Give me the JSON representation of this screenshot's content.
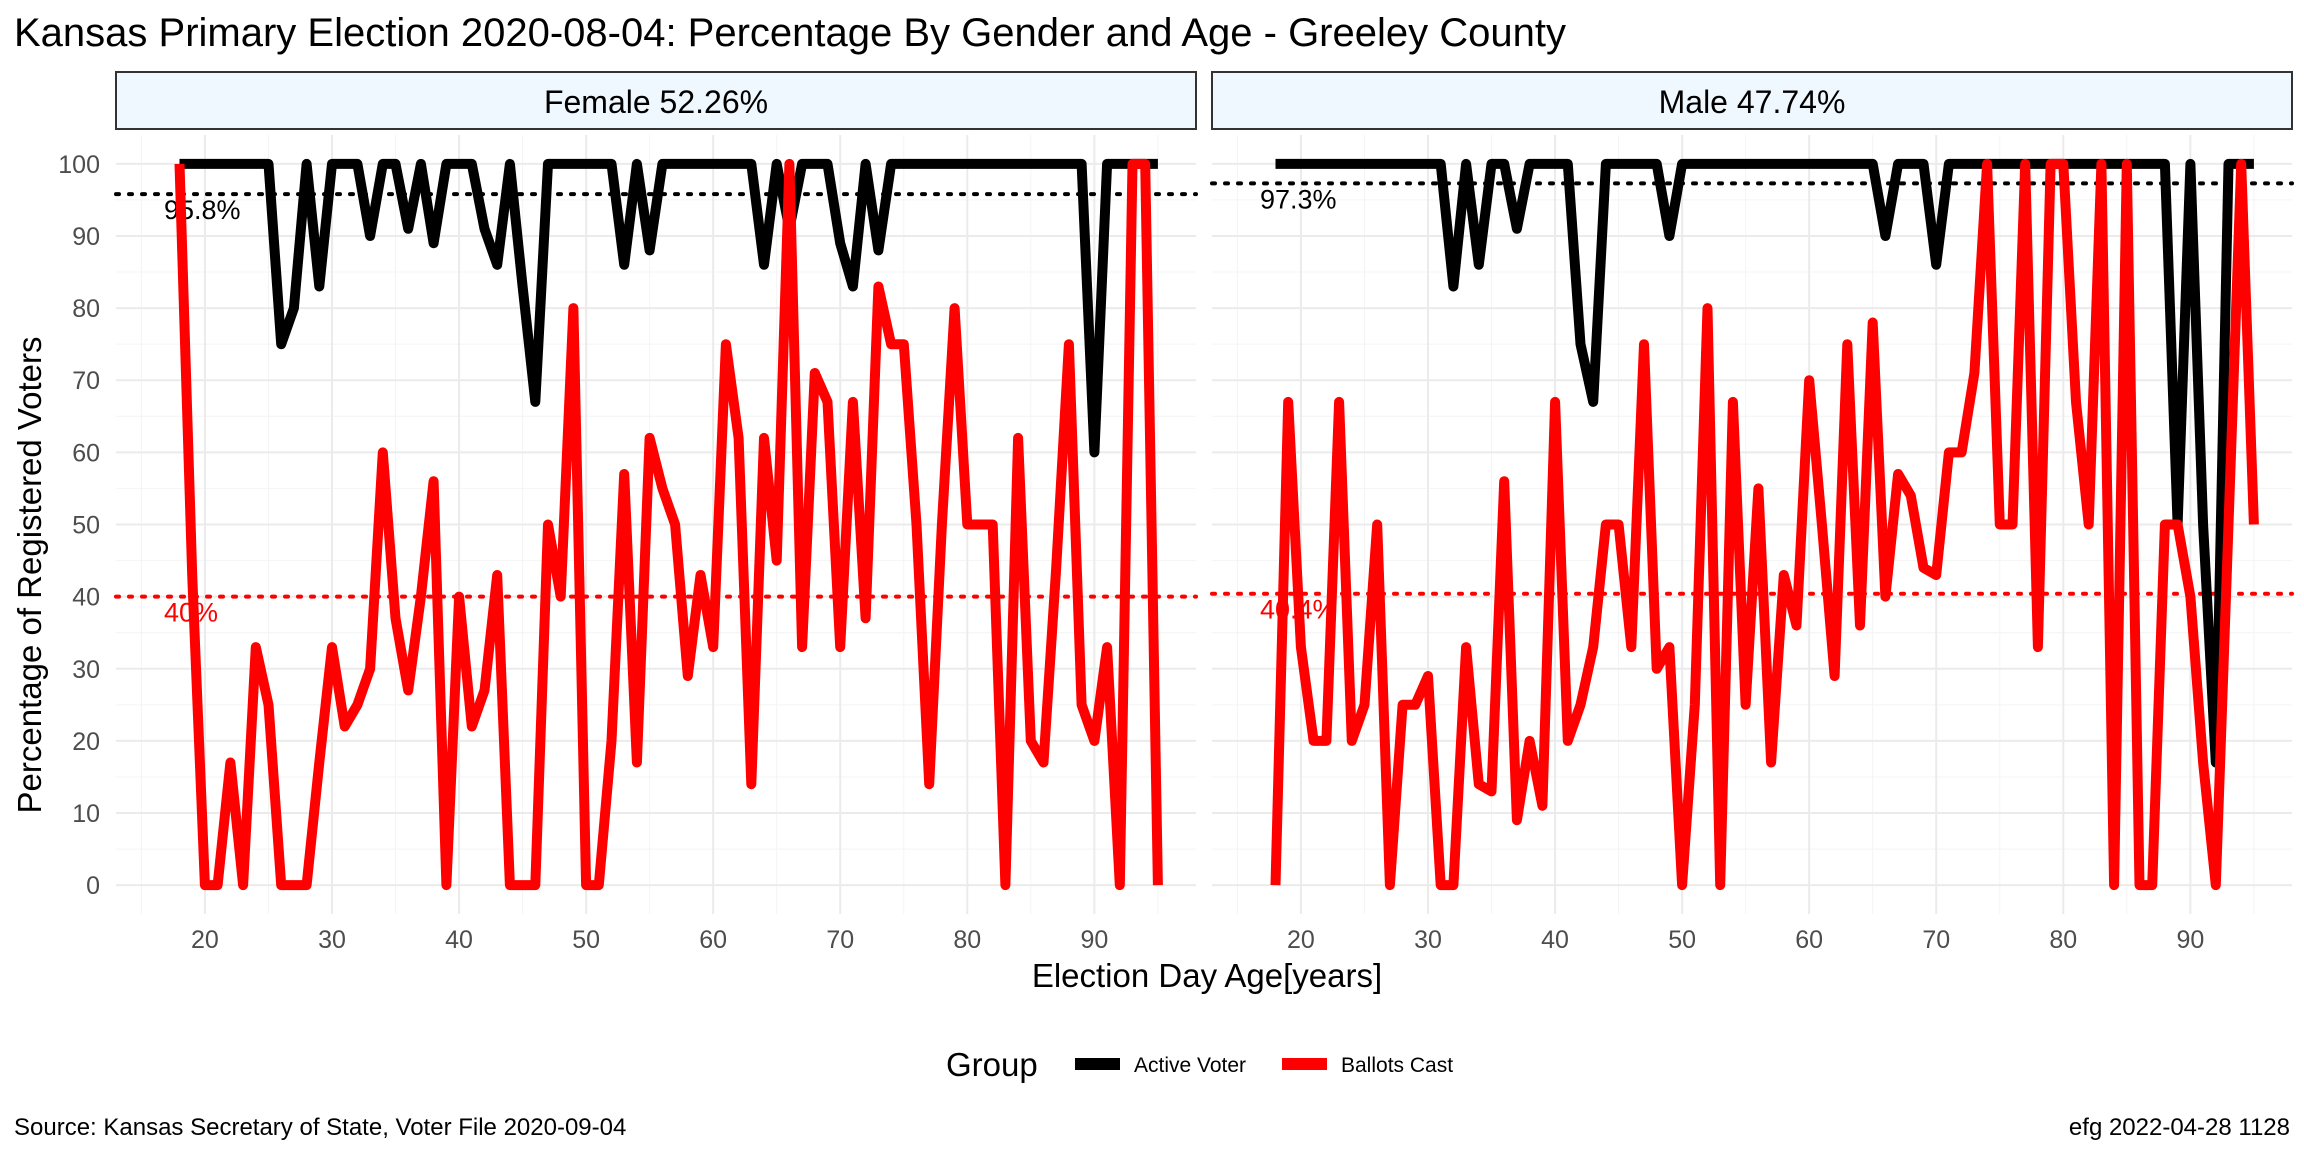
{
  "chart_data": {
    "type": "line",
    "title": "Kansas Primary Election 2020-08-04:  Percentage By Gender and Age - Greeley County",
    "xlabel": "Election Day Age[years]",
    "ylabel": "Percentage of Registered Voters",
    "xlim": [
      13,
      98
    ],
    "ylim": [
      -4,
      104
    ],
    "xticks": [
      20,
      30,
      40,
      50,
      60,
      70,
      80,
      90
    ],
    "yticks": [
      0,
      10,
      20,
      30,
      40,
      50,
      60,
      70,
      80,
      90,
      100
    ],
    "grid": true,
    "legend": {
      "title": "Group",
      "position": "bottom",
      "entries": [
        {
          "label": "Active Voter",
          "color": "#000000"
        },
        {
          "label": "Ballots Cast",
          "color": "#ff0000"
        }
      ]
    },
    "colors": {
      "active": "#000000",
      "ballots": "#ff0000",
      "strip_fill": "#f0f8ff",
      "grid": "#ebebeb"
    },
    "caption_left": "Source:  Kansas Secretary of State, Voter File  2020-09-04",
    "caption_right": "efg 2022-04-28 1128",
    "panels": [
      {
        "strip": "Female 52.26%",
        "reference_lines": [
          {
            "value": 95.8,
            "label": "95.8%",
            "color": "#000000"
          },
          {
            "value": 40,
            "label": "40%",
            "color": "#ff0000"
          }
        ],
        "series": [
          {
            "name": "Active Voter",
            "x": [
              18,
              19,
              20,
              21,
              22,
              23,
              24,
              25,
              26,
              27,
              28,
              29,
              30,
              31,
              32,
              33,
              34,
              35,
              36,
              37,
              38,
              39,
              40,
              41,
              42,
              43,
              44,
              45,
              46,
              47,
              48,
              49,
              50,
              51,
              52,
              53,
              54,
              55,
              56,
              57,
              58,
              59,
              60,
              61,
              62,
              63,
              64,
              65,
              66,
              67,
              68,
              69,
              70,
              71,
              72,
              73,
              74,
              75,
              76,
              77,
              78,
              79,
              80,
              81,
              82,
              83,
              84,
              85,
              86,
              87,
              88,
              89,
              90,
              91,
              92,
              93,
              94,
              95
            ],
            "values": [
              100,
              100,
              100,
              100,
              100,
              100,
              100,
              100,
              75,
              80,
              100,
              83,
              100,
              100,
              100,
              90,
              100,
              100,
              91,
              100,
              89,
              100,
              100,
              100,
              91,
              86,
              100,
              83,
              67,
              100,
              100,
              100,
              100,
              100,
              100,
              86,
              100,
              88,
              100,
              100,
              100,
              100,
              100,
              100,
              100,
              100,
              86,
              100,
              91,
              100,
              100,
              100,
              89,
              83,
              100,
              88,
              100,
              100,
              100,
              100,
              100,
              100,
              100,
              100,
              100,
              100,
              100,
              100,
              100,
              100,
              100,
              100,
              60,
              100,
              100,
              100,
              100,
              100
            ]
          },
          {
            "name": "Ballots Cast",
            "x": [
              18,
              19,
              20,
              21,
              22,
              23,
              24,
              25,
              26,
              27,
              28,
              29,
              30,
              31,
              32,
              33,
              34,
              35,
              36,
              37,
              38,
              39,
              40,
              41,
              42,
              43,
              44,
              45,
              46,
              47,
              48,
              49,
              50,
              51,
              52,
              53,
              54,
              55,
              56,
              57,
              58,
              59,
              60,
              61,
              62,
              63,
              64,
              65,
              66,
              67,
              68,
              69,
              70,
              71,
              72,
              73,
              74,
              75,
              76,
              77,
              78,
              79,
              80,
              81,
              82,
              83,
              84,
              85,
              86,
              87,
              88,
              89,
              90,
              91,
              92,
              93,
              94,
              95
            ],
            "values": [
              100,
              43,
              0,
              0,
              17,
              0,
              33,
              25,
              0,
              0,
              0,
              17,
              33,
              22,
              25,
              30,
              60,
              37,
              27,
              40,
              56,
              0,
              40,
              22,
              27,
              43,
              0,
              0,
              0,
              50,
              40,
              80,
              0,
              0,
              20,
              57,
              17,
              62,
              55,
              50,
              29,
              43,
              33,
              75,
              62,
              14,
              62,
              45,
              100,
              33,
              71,
              67,
              33,
              67,
              37,
              83,
              75,
              75,
              50,
              14,
              50,
              80,
              50,
              50,
              50,
              0,
              62,
              20,
              17,
              44,
              75,
              25,
              20,
              33,
              0,
              100,
              100,
              0
            ]
          }
        ]
      },
      {
        "strip": "Male 47.74%",
        "reference_lines": [
          {
            "value": 97.3,
            "label": "97.3%",
            "color": "#000000"
          },
          {
            "value": 40.4,
            "label": "40.4%",
            "color": "#ff0000"
          }
        ],
        "series": [
          {
            "name": "Active Voter",
            "x": [
              18,
              19,
              20,
              21,
              22,
              23,
              24,
              25,
              26,
              27,
              28,
              29,
              30,
              31,
              32,
              33,
              34,
              35,
              36,
              37,
              38,
              39,
              40,
              41,
              42,
              43,
              44,
              45,
              46,
              47,
              48,
              49,
              50,
              51,
              52,
              53,
              54,
              55,
              56,
              57,
              58,
              59,
              60,
              61,
              62,
              63,
              64,
              65,
              66,
              67,
              68,
              69,
              70,
              71,
              72,
              73,
              74,
              75,
              76,
              77,
              78,
              79,
              80,
              81,
              82,
              83,
              84,
              85,
              86,
              87,
              88,
              89,
              90,
              91,
              92,
              93,
              94,
              95
            ],
            "values": [
              100,
              100,
              100,
              100,
              100,
              100,
              100,
              100,
              100,
              100,
              100,
              100,
              100,
              100,
              83,
              100,
              86,
              100,
              100,
              91,
              100,
              100,
              100,
              100,
              75,
              67,
              100,
              100,
              100,
              100,
              100,
              90,
              100,
              100,
              100,
              100,
              100,
              100,
              100,
              100,
              100,
              100,
              100,
              100,
              100,
              100,
              100,
              100,
              90,
              100,
              100,
              100,
              86,
              100,
              100,
              100,
              100,
              100,
              100,
              100,
              100,
              100,
              100,
              100,
              100,
              100,
              100,
              100,
              100,
              100,
              100,
              50,
              100,
              50,
              17,
              100,
              100,
              100
            ]
          },
          {
            "name": "Ballots Cast",
            "x": [
              18,
              19,
              20,
              21,
              22,
              23,
              24,
              25,
              26,
              27,
              28,
              29,
              30,
              31,
              32,
              33,
              34,
              35,
              36,
              37,
              38,
              39,
              40,
              41,
              42,
              43,
              44,
              45,
              46,
              47,
              48,
              49,
              50,
              51,
              52,
              53,
              54,
              55,
              56,
              57,
              58,
              59,
              60,
              61,
              62,
              63,
              64,
              65,
              66,
              67,
              68,
              69,
              70,
              71,
              72,
              73,
              74,
              75,
              76,
              77,
              78,
              79,
              80,
              81,
              82,
              83,
              84,
              85,
              86,
              87,
              88,
              89,
              90,
              91,
              92,
              93,
              94,
              95
            ],
            "values": [
              0,
              67,
              33,
              20,
              20,
              67,
              20,
              25,
              50,
              0,
              25,
              25,
              29,
              0,
              0,
              33,
              14,
              13,
              56,
              9,
              20,
              11,
              67,
              20,
              25,
              33,
              50,
              50,
              33,
              75,
              30,
              33,
              0,
              25,
              80,
              0,
              67,
              25,
              55,
              17,
              43,
              36,
              70,
              50,
              29,
              75,
              36,
              78,
              40,
              57,
              54,
              44,
              43,
              60,
              60,
              71,
              100,
              50,
              50,
              100,
              33,
              100,
              100,
              67,
              50,
              100,
              0,
              100,
              0,
              0,
              50,
              50,
              40,
              17,
              0,
              50,
              100,
              50
            ]
          }
        ]
      }
    ]
  }
}
